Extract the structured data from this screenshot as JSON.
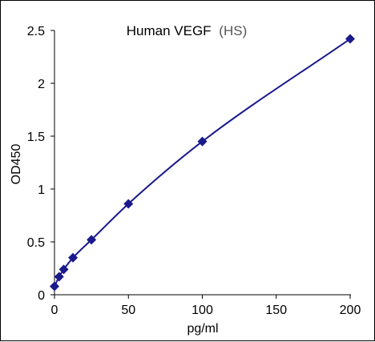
{
  "chart_data": {
    "type": "scatter",
    "title": "Human VEGF",
    "title_suffix": "(HS)",
    "xlabel": "pg/ml",
    "ylabel": "OD450",
    "xlim": [
      0,
      200
    ],
    "ylim": [
      0,
      2.5
    ],
    "xticks": [
      0,
      50,
      100,
      150,
      200
    ],
    "yticks": [
      0,
      0.5,
      1,
      1.5,
      2,
      2.5
    ],
    "xtick_labels": [
      "0",
      "50",
      "100",
      "150",
      "200"
    ],
    "ytick_labels": [
      "0",
      "0.5",
      "1",
      "1.5",
      "2",
      "2.5"
    ],
    "grid": false,
    "legend": "none",
    "fit": "smooth curve",
    "color": "#1a1a8c",
    "series": [
      {
        "x": [
          0,
          3.13,
          6.25,
          12.5,
          25,
          50,
          100,
          200
        ],
        "y": [
          0.08,
          0.17,
          0.24,
          0.35,
          0.52,
          0.86,
          1.45,
          2.42
        ]
      }
    ]
  }
}
